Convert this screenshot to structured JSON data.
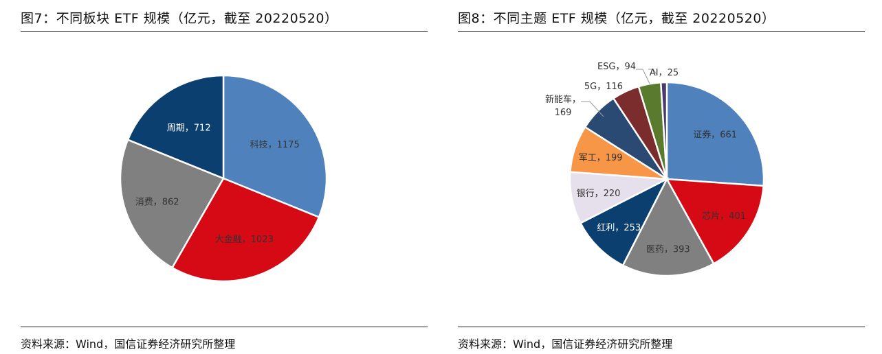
{
  "chart_data": [
    {
      "type": "pie",
      "title": "图7：不同板块 ETF 规模（亿元，截至 20220520）",
      "source": "资料来源：Wind，国信证券经济研究所整理",
      "slices": [
        {
          "label": "科技",
          "value": 1175,
          "color": "#4F81BD",
          "text": "科技，1175"
        },
        {
          "label": "大金融",
          "value": 1023,
          "color": "#D50A15",
          "text": "大金融，1023"
        },
        {
          "label": "消费",
          "value": 862,
          "color": "#808080",
          "text": "消费，862"
        },
        {
          "label": "周期",
          "value": 712,
          "color": "#0B3F6F",
          "text": "周期，712"
        }
      ]
    },
    {
      "type": "pie",
      "title": "图8：不同主题 ETF 规模（亿元，截至 20220520）",
      "source": "资料来源：Wind，国信证券经济研究所整理",
      "slices": [
        {
          "label": "证券",
          "value": 661,
          "color": "#4F81BD",
          "text": "证券，661"
        },
        {
          "label": "芯片",
          "value": 401,
          "color": "#D50A15",
          "text": "芯片，401"
        },
        {
          "label": "医药",
          "value": 393,
          "color": "#808080",
          "text": "医药，393"
        },
        {
          "label": "红利",
          "value": 253,
          "color": "#0B3F6F",
          "text": "红利，253"
        },
        {
          "label": "银行",
          "value": 220,
          "color": "#E5E0EC",
          "text": "银行，220"
        },
        {
          "label": "军工",
          "value": 199,
          "color": "#F79646",
          "text": "军工，199"
        },
        {
          "label": "新能车",
          "value": 169,
          "color": "#2B4A73",
          "text": "新能车，169"
        },
        {
          "label": "5G",
          "value": 116,
          "color": "#7B2C2C",
          "text": "5G，116"
        },
        {
          "label": "ESG",
          "value": 94,
          "color": "#5A7A2E",
          "text": "ESG，94"
        },
        {
          "label": "AI",
          "value": 25,
          "color": "#4B3A6B",
          "text": "AI，25"
        }
      ]
    }
  ]
}
